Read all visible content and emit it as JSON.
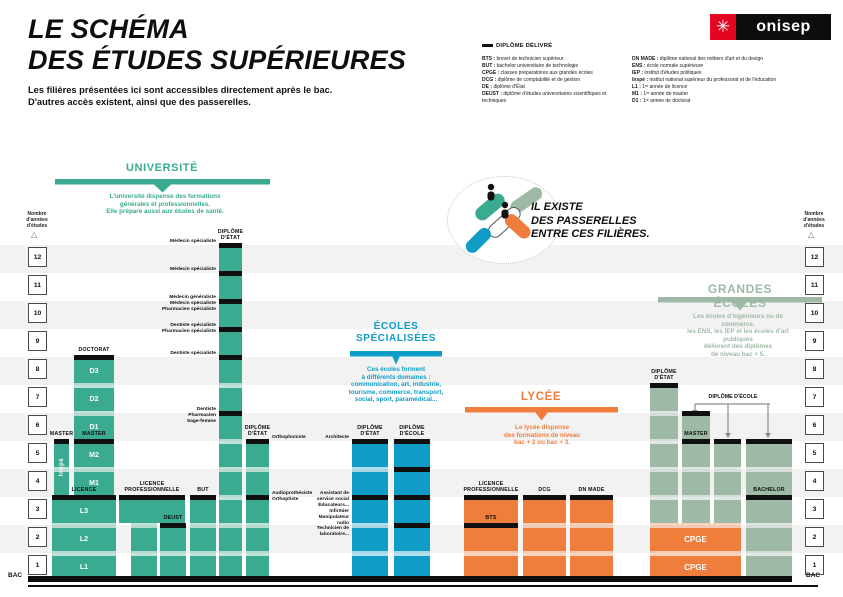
{
  "header": {
    "title": "LE SCHÉMA\nDES ÉTUDES SUPÉRIEURES",
    "subtitle": "Les filières présentées ici sont accessibles directement après le bac.\nD'autres accès existent, ainsi que des passerelles.",
    "logo_text": "onisep"
  },
  "legend": {
    "title": "DIPLÔME DÉLIVRÉ",
    "left": [
      {
        "abbr": "BTS",
        "desc": "brevet de technicien supérieur"
      },
      {
        "abbr": "BUT",
        "desc": "bachelor universitaire de technologie"
      },
      {
        "abbr": "CPGE",
        "desc": "classes préparatoires aux grandes écoles"
      },
      {
        "abbr": "DCG",
        "desc": "diplôme de comptabilité et de gestion"
      },
      {
        "abbr": "DE",
        "desc": "diplôme d'État"
      },
      {
        "abbr": "DEUST",
        "desc": "diplôme d'études universitaires scientifiques et techniques"
      }
    ],
    "right": [
      {
        "abbr": "DN MADE",
        "desc": "diplôme national des métiers d'art et du design"
      },
      {
        "abbr": "ENS",
        "desc": "école normale supérieure"
      },
      {
        "abbr": "IEP",
        "desc": "institut d'études politiques"
      },
      {
        "abbr": "Inspé",
        "desc": "institut national supérieur du professorat et de l'éducation"
      },
      {
        "abbr": "L1",
        "desc": "1ʳᵉ année de licence"
      },
      {
        "abbr": "M1",
        "desc": "1ʳᵉ année de master"
      },
      {
        "abbr": "D1",
        "desc": "1ʳᵉ année de doctorat"
      }
    ]
  },
  "axis": {
    "label": "Nombre\nd'années\nd'études",
    "years": [
      12,
      11,
      10,
      9,
      8,
      7,
      6,
      5,
      4,
      3,
      2,
      1
    ],
    "bac": "BAC"
  },
  "passerelles": {
    "text": "IL EXISTE\nDES PASSERELLES\nENTRE CES FILIÈRES."
  },
  "sections": {
    "universite": {
      "title": "UNIVERSITÉ",
      "description": "L'université dispense des formations\ngénérales et professionnelles.\nElle prépare aussi aux études de santé.",
      "color": "#3aab91"
    },
    "ecoles_specialisees": {
      "title": "ÉCOLES\nSPÉCIALISÉES",
      "description": "Ces écoles forment\nà différents domaines :\ncommunication, art, industrie,\ntourisme, commerce, transport,\nsocial, sport, paramédical...",
      "color": "#0f9dc8"
    },
    "lycee": {
      "title": "LYCÉE",
      "description": "Le lycée dispense\ndes formations de niveau\nbac + 2 ou bac + 3.",
      "color": "#ef7d3c"
    },
    "grandes_ecoles": {
      "title": "GRANDES ÉCOLES",
      "description": "Les écoles d'ingénieurs ou de commerce,\nles ENS, les IEP et les écoles d'art publiques\ndélivrent des diplômes\nde niveau bac + 5.",
      "color": "#9eb9a6"
    }
  },
  "connector_label": "DIPLÔME D'ÉCOLE",
  "columns": [
    {
      "id": "inspe",
      "section": "universite",
      "header": "MASTER",
      "vertical_text": "Inspé",
      "years": [
        4,
        5
      ],
      "caps": [
        5
      ]
    },
    {
      "id": "master",
      "section": "universite",
      "header": "MASTER",
      "years": [
        4,
        5
      ],
      "caps": [
        5
      ],
      "block_labels": {
        "5": "M2",
        "4": "M1"
      }
    },
    {
      "id": "doctorat",
      "section": "universite",
      "header": "DOCTORAT",
      "years": [
        6,
        8
      ],
      "caps": [
        8
      ],
      "block_labels": {
        "8": "D3",
        "7": "D2",
        "6": "D1"
      }
    },
    {
      "id": "licence",
      "section": "universite",
      "header": "LICENCE",
      "years": [
        1,
        3
      ],
      "caps": [
        3
      ],
      "block_labels": {
        "3": "L3",
        "2": "L2",
        "1": "L1"
      }
    },
    {
      "id": "licence-pro-universite",
      "section": "universite",
      "header": "LICENCE\nPROFESSIONNELLE",
      "years": [
        3,
        3
      ],
      "caps": [
        3
      ]
    },
    {
      "id": "licence-pro-acces",
      "section": "universite",
      "years": [
        1,
        2
      ]
    },
    {
      "id": "deust",
      "section": "universite",
      "header": "DEUST",
      "years": [
        1,
        2
      ],
      "caps": [
        2
      ]
    },
    {
      "id": "but",
      "section": "universite",
      "header": "BUT",
      "years": [
        1,
        3
      ],
      "caps": [
        3
      ]
    },
    {
      "id": "sante",
      "section": "universite",
      "header": "DIPLÔME\nD'ÉTAT",
      "years": [
        1,
        12
      ],
      "caps": [
        12,
        11,
        10,
        9,
        8,
        6
      ],
      "side_labels": [
        {
          "year": 12,
          "side": "left",
          "text": "Médecin spécialiste"
        },
        {
          "year": 11,
          "side": "left",
          "text": "Médecin spécialiste"
        },
        {
          "year": 10,
          "side": "left",
          "text": "Médecin généraliste\nMédecin spécialiste\nPharmacien spécialiste"
        },
        {
          "year": 9,
          "side": "left",
          "text": "Dentiste spécialiste\nPharmacien spécialiste"
        },
        {
          "year": 8,
          "side": "left",
          "text": "Dentiste spécialiste"
        },
        {
          "year": 6,
          "side": "left",
          "text": "Dentiste\nPharmacien\nSage-femme"
        }
      ]
    },
    {
      "id": "paramedical-universite",
      "section": "universite",
      "header": "DIPLÔME\nD'ÉTAT",
      "years": [
        1,
        5
      ],
      "caps": [
        5,
        3
      ],
      "side_labels": [
        {
          "year": 5,
          "side": "right",
          "text": "Orthophoniste"
        },
        {
          "year": 3,
          "side": "right",
          "text": "Audioprothésiste\nOrthoptiste"
        }
      ]
    },
    {
      "id": "es-diplome-etat",
      "section": "ecoles_specialisees",
      "header": "DIPLÔME\nD'ÉTAT",
      "years": [
        1,
        5
      ],
      "caps": [
        5,
        3
      ],
      "side_labels": [
        {
          "year": 5,
          "side": "left",
          "text": "Architecte"
        },
        {
          "year": 3,
          "side": "left",
          "text": "Assistant de\nservice social\nÉducateurs...\nInfirmier\nManipulateur\nradio\nTechnicien de\nlaboratoire..."
        }
      ]
    },
    {
      "id": "es-diplome-ecole",
      "section": "ecoles_specialisees",
      "header": "DIPLÔME\nD'ÉCOLE",
      "years": [
        1,
        5
      ],
      "caps": [
        5,
        4,
        3,
        2
      ]
    },
    {
      "id": "lycee-licence-pro",
      "section": "lycee",
      "header": "LICENCE\nPROFESSIONNELLE",
      "years": [
        1,
        3
      ],
      "caps": [
        3,
        2
      ],
      "cap_labels": [
        {
          "year": 2,
          "text": "BTS"
        }
      ]
    },
    {
      "id": "dcg",
      "section": "lycee",
      "header": "DCG",
      "years": [
        1,
        3
      ],
      "caps": [
        3
      ]
    },
    {
      "id": "dn-made",
      "section": "lycee",
      "header": "DN MADE",
      "years": [
        1,
        3
      ],
      "caps": [
        3
      ]
    },
    {
      "id": "ge-diplome-etat",
      "section": "grandes_ecoles",
      "header": "DIPLÔME\nD'ÉTAT",
      "years": [
        3,
        7
      ],
      "caps": [
        7
      ]
    },
    {
      "id": "ge-master",
      "section": "grandes_ecoles",
      "years": [
        3,
        6
      ],
      "caps": [
        6,
        5
      ],
      "cap_labels": [
        {
          "year": 5,
          "text": "MASTER"
        }
      ]
    },
    {
      "id": "ge-ecole",
      "section": "grandes_ecoles",
      "years": [
        3,
        5
      ],
      "caps": [
        5
      ]
    },
    {
      "id": "ge-bachelor",
      "section": "grandes_ecoles",
      "years": [
        1,
        5
      ],
      "caps": [
        5,
        3
      ],
      "cap_labels": [
        {
          "year": 3,
          "text": "BACHELOR"
        }
      ]
    },
    {
      "id": "cpge",
      "section": "lycee",
      "years": [
        1,
        2
      ],
      "block_labels": {
        "2": "CPGE",
        "1": "CPGE"
      }
    }
  ]
}
